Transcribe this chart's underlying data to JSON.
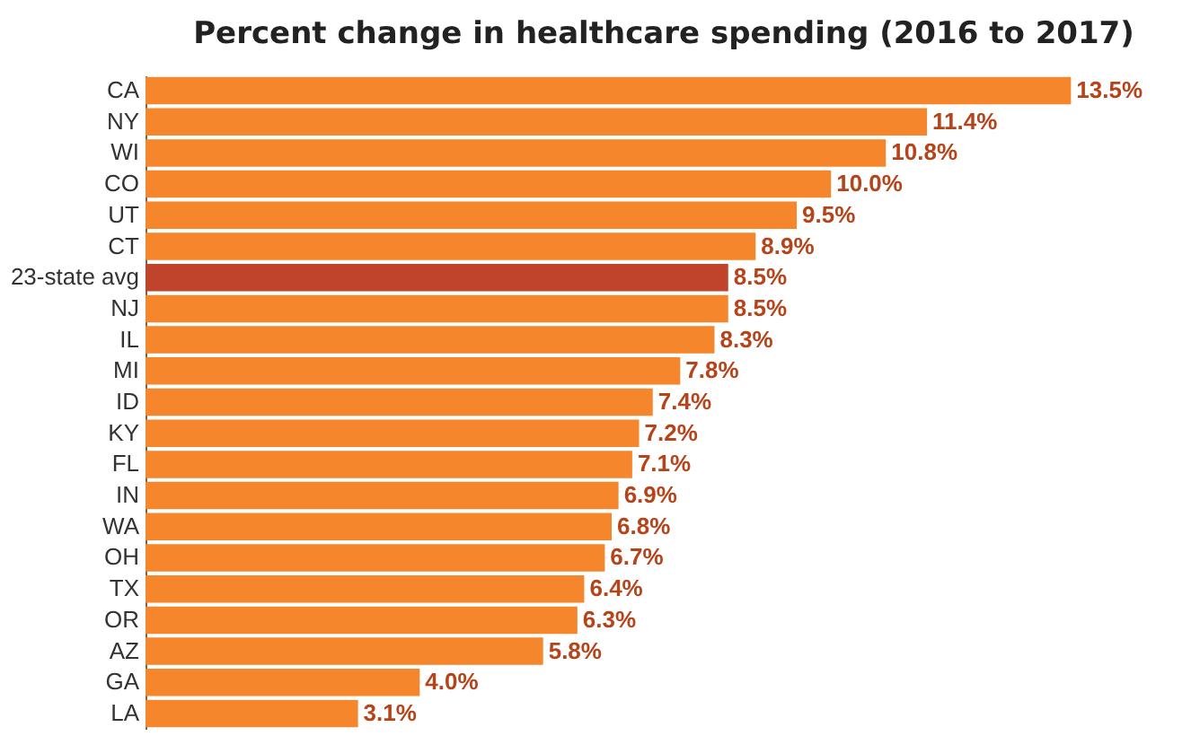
{
  "chart_data": {
    "type": "bar",
    "orientation": "horizontal",
    "title": "Percent change in healthcare spending (2016 to 2017)",
    "categories": [
      "CA",
      "NY",
      "WI",
      "CO",
      "UT",
      "CT",
      "23-state avg",
      "NJ",
      "IL",
      "MI",
      "ID",
      "KY",
      "FL",
      "IN",
      "WA",
      "OH",
      "TX",
      "OR",
      "AZ",
      "GA",
      "LA"
    ],
    "values": [
      13.5,
      11.4,
      10.8,
      10.0,
      9.5,
      8.9,
      8.5,
      8.5,
      8.3,
      7.8,
      7.4,
      7.2,
      7.1,
      6.9,
      6.8,
      6.7,
      6.4,
      6.3,
      5.8,
      4.0,
      3.1
    ],
    "value_labels": [
      "13.5%",
      "11.4%",
      "10.8%",
      "10.0%",
      "9.5%",
      "8.9%",
      "8.5%",
      "8.5%",
      "8.3%",
      "7.8%",
      "7.4%",
      "7.2%",
      "7.1%",
      "6.9%",
      "6.8%",
      "6.7%",
      "6.4%",
      "6.3%",
      "5.8%",
      "4.0%",
      "3.1%"
    ],
    "colors": [
      "#f5862b",
      "#f5862b",
      "#f5862b",
      "#f5862b",
      "#f5862b",
      "#f5862b",
      "#c0432c",
      "#f5862b",
      "#f5862b",
      "#f5862b",
      "#f5862b",
      "#f5862b",
      "#f5862b",
      "#f5862b",
      "#f5862b",
      "#f5862b",
      "#f5862b",
      "#f5862b",
      "#f5862b",
      "#f5862b",
      "#f5862b"
    ],
    "grid": false
  }
}
